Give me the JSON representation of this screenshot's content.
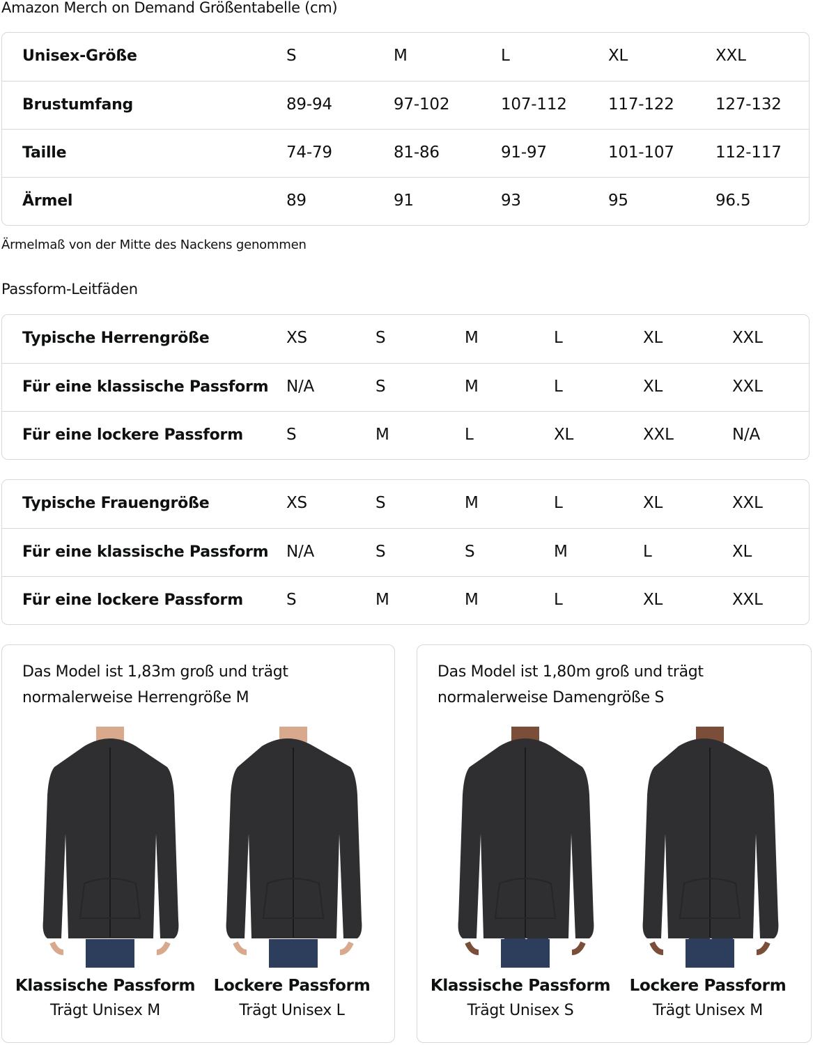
{
  "title": "Amazon Merch on Demand Größentabelle (cm)",
  "size_table": {
    "rows": [
      {
        "label": "Unisex-Größe",
        "values": [
          "S",
          "M",
          "L",
          "XL",
          "XXL"
        ]
      },
      {
        "label": "Brustumfang",
        "values": [
          "89-94",
          "97-102",
          "107-112",
          "117-122",
          "127-132"
        ]
      },
      {
        "label": "Taille",
        "values": [
          "74-79",
          "81-86",
          "91-97",
          "101-107",
          "112-117"
        ]
      },
      {
        "label": "Ärmel",
        "values": [
          "89",
          "91",
          "93",
          "95",
          "96.5"
        ]
      }
    ]
  },
  "sleeve_note": "Ärmelmaß von der Mitte des Nackens genommen",
  "fit_guides_title": "Passform-Leitfäden",
  "men_table": {
    "rows": [
      {
        "label": "Typische Herrengröße",
        "values": [
          "XS",
          "S",
          "M",
          "L",
          "XL",
          "XXL"
        ]
      },
      {
        "label": "Für eine klassische Passform",
        "values": [
          "N/A",
          "S",
          "M",
          "L",
          "XL",
          "XXL"
        ]
      },
      {
        "label": "Für eine lockere Passform",
        "values": [
          "S",
          "M",
          "L",
          "XL",
          "XXL",
          "N/A"
        ]
      }
    ]
  },
  "women_table": {
    "rows": [
      {
        "label": "Typische Frauengröße",
        "values": [
          "XS",
          "S",
          "M",
          "L",
          "XL",
          "XXL"
        ]
      },
      {
        "label": "Für eine klassische Passform",
        "values": [
          "N/A",
          "S",
          "S",
          "M",
          "L",
          "XL"
        ]
      },
      {
        "label": "Für eine lockere Passform",
        "values": [
          "S",
          "M",
          "M",
          "L",
          "XL",
          "XXL"
        ]
      }
    ]
  },
  "cards": [
    {
      "line1": "Das Model ist 1,83m groß und trägt",
      "line2": "normalerweise Herrengröße M",
      "fits": [
        {
          "title": "Klassische Passform",
          "sub": "Trägt Unisex M"
        },
        {
          "title": "Lockere Passform",
          "sub": "Trägt Unisex L"
        }
      ]
    },
    {
      "line1": "Das Model ist 1,80m groß und trägt",
      "line2": "normalerweise Damengröße S",
      "fits": [
        {
          "title": "Klassische Passform",
          "sub": "Trägt Unisex S"
        },
        {
          "title": "Lockere Passform",
          "sub": "Trägt Unisex M"
        }
      ]
    }
  ],
  "colors": {
    "border": "#d5d9d9",
    "text": "#0f1111",
    "hoodie": "#2f2f31",
    "jeans": "#2c3e5c"
  }
}
